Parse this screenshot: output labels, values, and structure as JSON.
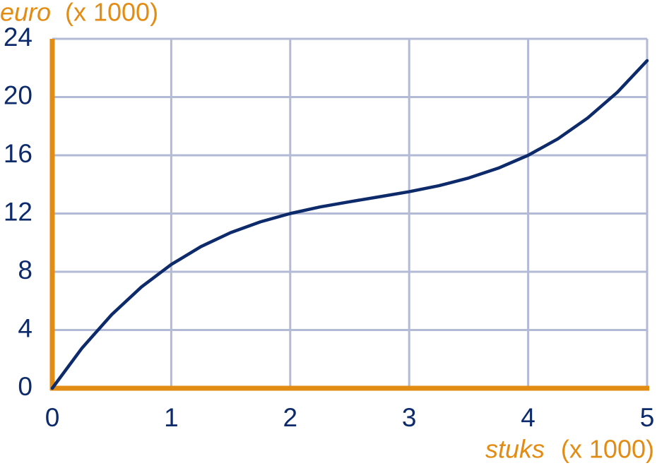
{
  "chart_data": {
    "type": "line",
    "ylabel": "euro",
    "yunit": "(x 1000)",
    "xlabel": "stuks",
    "xunit": "(x 1000)",
    "x": [
      0,
      0.25,
      0.5,
      0.75,
      1,
      1.25,
      1.5,
      1.75,
      2,
      2.25,
      2.5,
      2.75,
      3,
      3.25,
      3.5,
      3.75,
      4,
      4.25,
      4.5,
      4.75,
      5
    ],
    "series": [
      {
        "color": "#0d2a6b",
        "values": [
          0,
          2.76,
          5.06,
          6.96,
          8.5,
          9.73,
          10.69,
          11.43,
          12,
          12.45,
          12.81,
          13.15,
          13.5,
          13.91,
          14.44,
          15.12,
          16,
          17.13,
          18.56,
          20.33,
          22.5
        ]
      }
    ],
    "xlim": [
      0,
      5
    ],
    "xticks": [
      0,
      1,
      2,
      3,
      4,
      5
    ],
    "ylim": [
      0,
      24
    ],
    "yticks": [
      0,
      4,
      8,
      12,
      16,
      20,
      24
    ],
    "grid": true,
    "grid_color": "#b3bad6",
    "axis_color": "#e38c14"
  }
}
